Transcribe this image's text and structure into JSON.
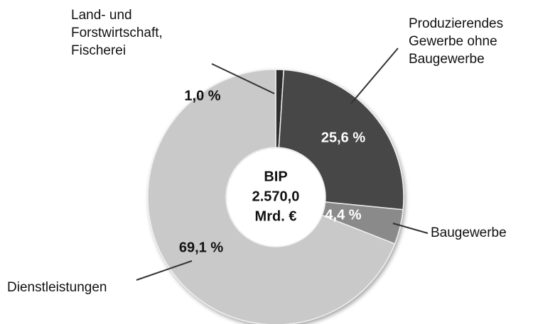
{
  "chart_data": {
    "type": "donut",
    "categories": [
      [
        "Land- und",
        "Forstwirtschaft,",
        "Fischerei"
      ],
      [
        "Produzierendes",
        "Gewerbe ohne",
        "Baugewerbe"
      ],
      [
        "Baugewerbe"
      ],
      [
        "Dienstleistungen"
      ]
    ],
    "values": [
      1.0,
      25.6,
      4.4,
      69.1
    ],
    "value_labels": [
      "1,0 %",
      "25,6 %",
      "4,4 %",
      "69,1 %"
    ],
    "colors": [
      "#2e2e2e",
      "#474747",
      "#8a8a8a",
      "#c9c9c9"
    ],
    "center_text": [
      "BIP",
      "2.570,0",
      "Mrd. €"
    ]
  }
}
